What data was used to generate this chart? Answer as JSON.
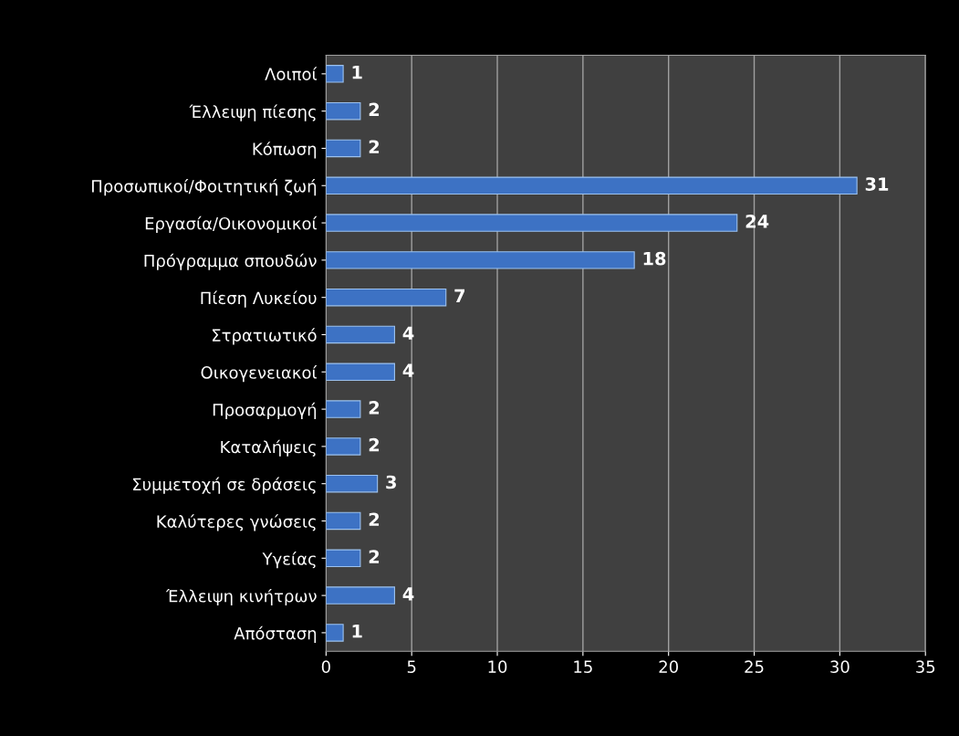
{
  "chart_data": {
    "type": "bar",
    "orientation": "horizontal",
    "categories": [
      "Λοιποί",
      "Έλλειψη πίεσης",
      "Κόπωση",
      "Προσωπικοί/Φοιτητική ζωή",
      "Εργασία/Οικονομικοί",
      "Πρόγραμμα σπουδών",
      "Πίεση Λυκείου",
      "Στρατιωτικό",
      "Οικογενειακοί",
      "Προσαρμογή",
      "Καταλήψεις",
      "Συμμετοχή σε δράσεις",
      "Καλύτερες γνώσεις",
      "Υγείας",
      "Έλλειψη κινήτρων",
      "Απόσταση"
    ],
    "values": [
      1,
      2,
      2,
      31,
      24,
      18,
      7,
      4,
      4,
      2,
      2,
      3,
      2,
      2,
      4,
      1
    ],
    "color": "#3d72c4",
    "data_labels": true,
    "xlim": [
      0,
      35
    ],
    "xticks": [
      0,
      5,
      10,
      15,
      20,
      25,
      30,
      35
    ],
    "grid": "x",
    "legend": false
  }
}
